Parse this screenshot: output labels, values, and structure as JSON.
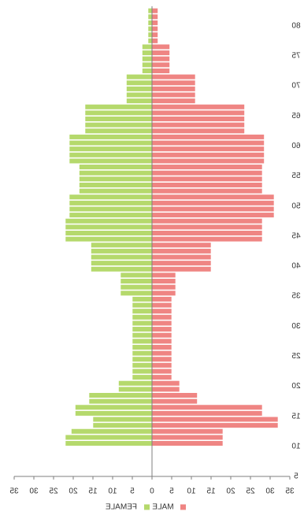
{
  "chart_data": {
    "type": "bar",
    "orientation": "horizontal-pyramid",
    "title": "",
    "xlabel": "",
    "ylabel": "",
    "xlim": [
      0,
      35
    ],
    "x_ticks": [
      "35",
      "30",
      "25",
      "20",
      "15",
      "10",
      "5",
      "0",
      "5",
      "10",
      "15",
      "20",
      "25",
      "30",
      "35"
    ],
    "y_ticks": [
      "5",
      "10",
      "15",
      "20",
      "25",
      "30",
      "35",
      "40",
      "45",
      "50",
      "55",
      "60",
      "65",
      "70",
      "75",
      "80"
    ],
    "age_range": [
      5,
      83
    ],
    "grid": false,
    "legend_position": "bottom",
    "mirrored_text": true,
    "series": [
      {
        "name": "FEMALE",
        "color": "#b5d96c",
        "ages": [
          [
            5,
            6,
            0
          ],
          [
            6,
            7,
            0
          ],
          [
            7,
            8,
            0
          ],
          [
            8,
            9,
            0
          ],
          [
            9,
            10,
            0
          ],
          [
            10,
            11,
            22
          ],
          [
            11,
            12,
            22
          ],
          [
            12,
            13,
            20.5
          ],
          [
            13,
            14,
            15
          ],
          [
            14,
            15,
            15
          ],
          [
            15,
            16,
            19.5
          ],
          [
            16,
            17,
            19.5
          ],
          [
            17,
            18,
            16
          ],
          [
            18,
            19,
            16
          ],
          [
            19,
            20,
            8.5
          ],
          [
            20,
            21,
            8.5
          ],
          [
            21,
            22,
            5
          ],
          [
            22,
            23,
            5
          ],
          [
            23,
            24,
            5
          ],
          [
            24,
            25,
            5
          ],
          [
            25,
            26,
            5
          ],
          [
            26,
            27,
            5
          ],
          [
            27,
            28,
            5
          ],
          [
            28,
            29,
            5
          ],
          [
            29,
            30,
            5
          ],
          [
            30,
            31,
            5
          ],
          [
            31,
            32,
            5
          ],
          [
            32,
            33,
            5
          ],
          [
            33,
            34,
            5
          ],
          [
            34,
            35,
            5
          ],
          [
            35,
            36,
            8
          ],
          [
            36,
            37,
            8
          ],
          [
            37,
            38,
            8
          ],
          [
            38,
            39,
            8
          ],
          [
            39,
            40,
            15.5
          ],
          [
            40,
            41,
            15.5
          ],
          [
            41,
            42,
            15.5
          ],
          [
            42,
            43,
            15.5
          ],
          [
            43,
            44,
            15.5
          ],
          [
            44,
            45,
            22
          ],
          [
            45,
            46,
            22
          ],
          [
            46,
            47,
            22
          ],
          [
            47,
            48,
            22
          ],
          [
            48,
            49,
            21
          ],
          [
            49,
            50,
            21
          ],
          [
            50,
            51,
            21
          ],
          [
            51,
            52,
            21
          ],
          [
            52,
            53,
            18.5
          ],
          [
            53,
            54,
            18.5
          ],
          [
            54,
            55,
            18.5
          ],
          [
            55,
            56,
            18.5
          ],
          [
            56,
            57,
            18.5
          ],
          [
            57,
            58,
            21
          ],
          [
            58,
            59,
            21
          ],
          [
            59,
            60,
            21
          ],
          [
            60,
            61,
            21
          ],
          [
            61,
            62,
            21
          ],
          [
            62,
            63,
            17
          ],
          [
            63,
            64,
            17
          ],
          [
            64,
            65,
            17
          ],
          [
            65,
            66,
            17
          ],
          [
            66,
            67,
            17
          ],
          [
            67,
            68,
            6.5
          ],
          [
            68,
            69,
            6.5
          ],
          [
            69,
            70,
            6.5
          ],
          [
            70,
            71,
            6.5
          ],
          [
            71,
            72,
            6.5
          ],
          [
            72,
            73,
            2.5
          ],
          [
            73,
            74,
            2.5
          ],
          [
            74,
            75,
            2.5
          ],
          [
            75,
            76,
            2.5
          ],
          [
            76,
            77,
            2.5
          ],
          [
            77,
            78,
            1
          ],
          [
            78,
            79,
            1
          ],
          [
            79,
            80,
            1
          ],
          [
            80,
            81,
            1
          ],
          [
            81,
            82,
            1
          ],
          [
            82,
            83,
            1
          ]
        ]
      },
      {
        "name": "MALE",
        "color": "#ef8583",
        "ages": [
          [
            5,
            6,
            0
          ],
          [
            6,
            7,
            0
          ],
          [
            7,
            8,
            0
          ],
          [
            8,
            9,
            0
          ],
          [
            9,
            10,
            0
          ],
          [
            10,
            11,
            18
          ],
          [
            11,
            12,
            18
          ],
          [
            12,
            13,
            18
          ],
          [
            13,
            14,
            32
          ],
          [
            14,
            15,
            32
          ],
          [
            15,
            16,
            28
          ],
          [
            16,
            17,
            28
          ],
          [
            17,
            18,
            11.5
          ],
          [
            18,
            19,
            11.5
          ],
          [
            19,
            20,
            7
          ],
          [
            20,
            21,
            7
          ],
          [
            21,
            22,
            5
          ],
          [
            22,
            23,
            5
          ],
          [
            23,
            24,
            5
          ],
          [
            24,
            25,
            5
          ],
          [
            25,
            26,
            5
          ],
          [
            26,
            27,
            5
          ],
          [
            27,
            28,
            5
          ],
          [
            28,
            29,
            5
          ],
          [
            29,
            30,
            5
          ],
          [
            30,
            31,
            5
          ],
          [
            31,
            32,
            5
          ],
          [
            32,
            33,
            5
          ],
          [
            33,
            34,
            5
          ],
          [
            34,
            35,
            5
          ],
          [
            35,
            36,
            6
          ],
          [
            36,
            37,
            6
          ],
          [
            37,
            38,
            6
          ],
          [
            38,
            39,
            6
          ],
          [
            39,
            40,
            15
          ],
          [
            40,
            41,
            15
          ],
          [
            41,
            42,
            15
          ],
          [
            42,
            43,
            15
          ],
          [
            43,
            44,
            15
          ],
          [
            44,
            45,
            28
          ],
          [
            45,
            46,
            28
          ],
          [
            46,
            47,
            28
          ],
          [
            47,
            48,
            28
          ],
          [
            48,
            49,
            31
          ],
          [
            49,
            50,
            31
          ],
          [
            50,
            51,
            31
          ],
          [
            51,
            52,
            31
          ],
          [
            52,
            53,
            28
          ],
          [
            53,
            54,
            28
          ],
          [
            54,
            55,
            28
          ],
          [
            55,
            56,
            28
          ],
          [
            56,
            57,
            28
          ],
          [
            57,
            58,
            28.5
          ],
          [
            58,
            59,
            28.5
          ],
          [
            59,
            60,
            28.5
          ],
          [
            60,
            61,
            28.5
          ],
          [
            61,
            62,
            28.5
          ],
          [
            62,
            63,
            23.5
          ],
          [
            63,
            64,
            23.5
          ],
          [
            64,
            65,
            23.5
          ],
          [
            65,
            66,
            23.5
          ],
          [
            66,
            67,
            23.5
          ],
          [
            67,
            68,
            11
          ],
          [
            68,
            69,
            11
          ],
          [
            69,
            70,
            11
          ],
          [
            70,
            71,
            11
          ],
          [
            71,
            72,
            11
          ],
          [
            72,
            73,
            4.5
          ],
          [
            73,
            74,
            4.5
          ],
          [
            74,
            75,
            4.5
          ],
          [
            75,
            76,
            4.5
          ],
          [
            76,
            77,
            4.5
          ],
          [
            77,
            78,
            1.5
          ],
          [
            78,
            79,
            1.5
          ],
          [
            79,
            80,
            1.5
          ],
          [
            80,
            81,
            1.5
          ],
          [
            81,
            82,
            1.5
          ],
          [
            82,
            83,
            1.5
          ]
        ]
      }
    ]
  }
}
